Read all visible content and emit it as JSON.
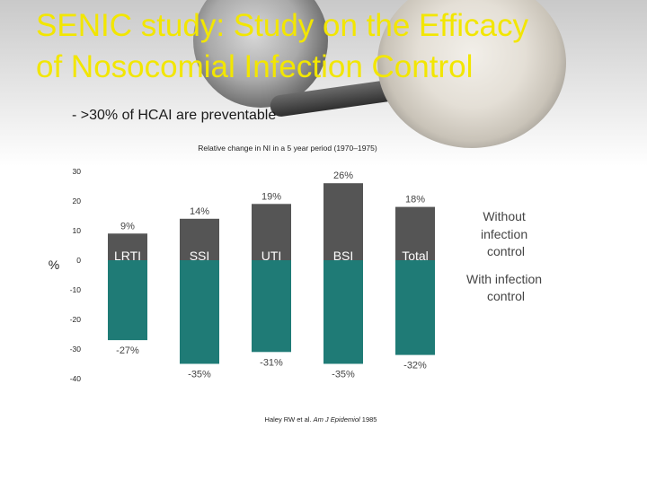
{
  "slide": {
    "title_line1": "SENIC study: Study on the Efficacy",
    "title_line2": "of Nosocomial Infection Control",
    "bullet": "-  >30% of HCAI are preventable",
    "citation_prefix": "Haley RW et al. ",
    "citation_journal": "Am J Epidemiol",
    "citation_year": " 1985"
  },
  "chart_data": {
    "type": "bar",
    "title": "Relative change in NI in a 5 year period (1970–1975)",
    "ylabel": "%",
    "ylim": [
      -40,
      30
    ],
    "yticks": [
      30,
      20,
      10,
      0,
      -10,
      -20,
      -30,
      -40
    ],
    "categories": [
      "LRTI",
      "SSI",
      "UTI",
      "BSI",
      "Total"
    ],
    "series": [
      {
        "name": "Without infection control",
        "values": [
          9,
          14,
          19,
          26,
          18
        ],
        "labels": [
          "9%",
          "14%",
          "19%",
          "26%",
          "18%"
        ],
        "color": "#555555"
      },
      {
        "name": "With infection control",
        "values": [
          -27,
          -35,
          -31,
          -35,
          -32
        ],
        "labels": [
          "-27%",
          "-35%",
          "-31%",
          "-35%",
          "-32%"
        ],
        "color": "#1f7b76"
      }
    ]
  }
}
